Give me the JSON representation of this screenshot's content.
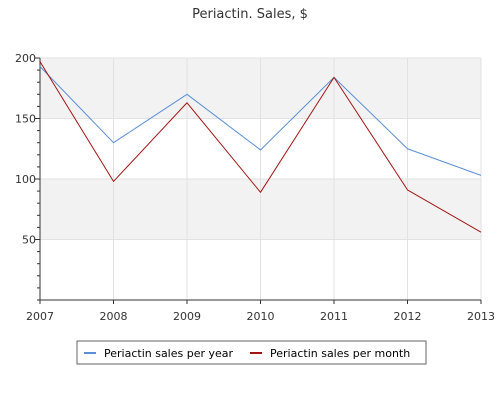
{
  "chart_data": {
    "type": "line",
    "title": "Periactin. Sales, $",
    "x": [
      2007,
      2008,
      2009,
      2010,
      2011,
      2012,
      2013
    ],
    "x_tick_labels": [
      "2007",
      "2008",
      "2009",
      "2010",
      "2011",
      "2012",
      "2013"
    ],
    "y_ticks": [
      50,
      100,
      150,
      200
    ],
    "y_tick_labels": [
      "50",
      "100",
      "150",
      "200"
    ],
    "ylim": [
      0,
      200
    ],
    "xlim": [
      2007,
      2013
    ],
    "grid": true,
    "legend_placement": "bottom-center",
    "series": [
      {
        "name": "Periactin sales per year",
        "color": "#5b8fd6",
        "values": [
          193,
          130,
          170,
          124,
          184,
          125,
          103
        ]
      },
      {
        "name": "Periactin sales per month",
        "color": "#a31515",
        "values": [
          197,
          98,
          163,
          89,
          184,
          91,
          56
        ]
      }
    ]
  }
}
